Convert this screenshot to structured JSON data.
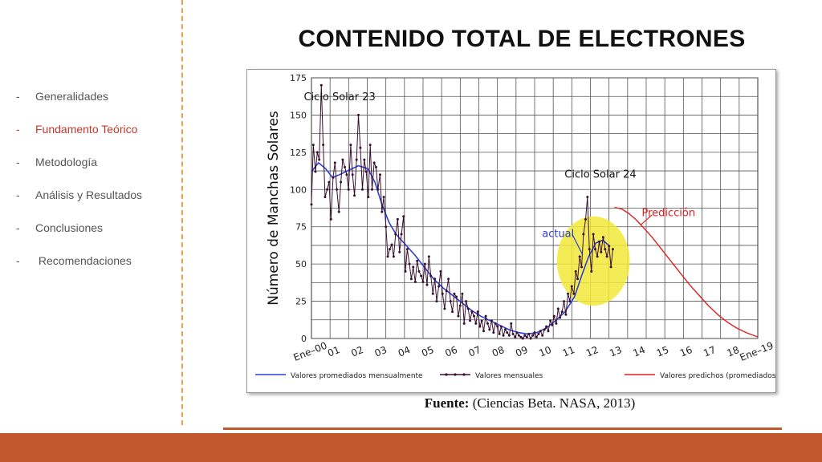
{
  "slide": {
    "title": "CONTENIDO TOTAL DE ELECTRONES",
    "caption_bold": "Fuente:",
    "caption_rest": " (Ciencias Beta. NASA, 2013)"
  },
  "nav": {
    "items": [
      {
        "dash": "-",
        "label": "Generalidades",
        "active": false
      },
      {
        "dash": "-",
        "label": "Fundamento Teórico",
        "active": true
      },
      {
        "dash": "-",
        "label": "Metodología",
        "active": false
      },
      {
        "dash": "-",
        "label": "Análisis y Resultados",
        "active": false
      },
      {
        "dash": "-",
        "label": "Conclusiones",
        "active": false
      },
      {
        "dash": "-",
        "label": " Recomendaciones",
        "active": false
      }
    ]
  },
  "colors": {
    "accent": "#c0572d",
    "divider": "#e8a04a",
    "active_nav": "#c0392b",
    "smoothed": "#2a3fd6",
    "monthly": "#3a1030",
    "predicted": "#e02020",
    "highlight": "#f2e93a"
  },
  "chart_data": {
    "type": "line",
    "ylabel": "Número de Manchas Solares",
    "xlabel": "",
    "ylim": [
      0,
      175
    ],
    "xlim": [
      0,
      19
    ],
    "grid": true,
    "yticks": [
      0,
      25,
      50,
      75,
      100,
      125,
      150,
      175
    ],
    "xticks": [
      {
        "x": 0,
        "label": "Ene–00"
      },
      {
        "x": 1,
        "label": "01"
      },
      {
        "x": 2,
        "label": "02"
      },
      {
        "x": 3,
        "label": "03"
      },
      {
        "x": 4,
        "label": "04"
      },
      {
        "x": 5,
        "label": "05"
      },
      {
        "x": 6,
        "label": "06"
      },
      {
        "x": 7,
        "label": "07"
      },
      {
        "x": 8,
        "label": "08"
      },
      {
        "x": 9,
        "label": "09"
      },
      {
        "x": 10,
        "label": "10"
      },
      {
        "x": 11,
        "label": "11"
      },
      {
        "x": 12,
        "label": "12"
      },
      {
        "x": 13,
        "label": "13"
      },
      {
        "x": 14,
        "label": "14"
      },
      {
        "x": 15,
        "label": "15"
      },
      {
        "x": 16,
        "label": "16"
      },
      {
        "x": 17,
        "label": "17"
      },
      {
        "x": 18,
        "label": "18"
      },
      {
        "x": 19,
        "label": "Ene–19"
      }
    ],
    "legend_position": "bottom",
    "series": [
      {
        "name": "Valores promediados mensualmente",
        "style": "smoothed",
        "points": [
          [
            0,
            112
          ],
          [
            0.3,
            118
          ],
          [
            0.6,
            114
          ],
          [
            0.9,
            108
          ],
          [
            1.2,
            110
          ],
          [
            1.6,
            113
          ],
          [
            2.0,
            116
          ],
          [
            2.4,
            114
          ],
          [
            2.7,
            105
          ],
          [
            3.0,
            90
          ],
          [
            3.3,
            78
          ],
          [
            3.6,
            70
          ],
          [
            4.0,
            63
          ],
          [
            4.4,
            56
          ],
          [
            4.8,
            48
          ],
          [
            5.2,
            40
          ],
          [
            5.6,
            34
          ],
          [
            6.0,
            29
          ],
          [
            6.4,
            24
          ],
          [
            6.8,
            19
          ],
          [
            7.2,
            15
          ],
          [
            7.6,
            12
          ],
          [
            8.0,
            9
          ],
          [
            8.4,
            6
          ],
          [
            8.8,
            4
          ],
          [
            9.2,
            3
          ],
          [
            9.6,
            4
          ],
          [
            10.0,
            7
          ],
          [
            10.4,
            12
          ],
          [
            10.8,
            18
          ],
          [
            11.2,
            28
          ],
          [
            11.5,
            42
          ],
          [
            11.8,
            55
          ],
          [
            12.1,
            64
          ],
          [
            12.4,
            66
          ],
          [
            12.7,
            62
          ]
        ]
      },
      {
        "name": "Valores mensuales",
        "style": "monthly",
        "points": [
          [
            0.0,
            90
          ],
          [
            0.08,
            130
          ],
          [
            0.17,
            112
          ],
          [
            0.25,
            125
          ],
          [
            0.33,
            120
          ],
          [
            0.42,
            170
          ],
          [
            0.5,
            130
          ],
          [
            0.58,
            95
          ],
          [
            0.67,
            100
          ],
          [
            0.75,
            105
          ],
          [
            0.83,
            80
          ],
          [
            0.92,
            108
          ],
          [
            1.0,
            118
          ],
          [
            1.08,
            100
          ],
          [
            1.17,
            85
          ],
          [
            1.25,
            105
          ],
          [
            1.33,
            120
          ],
          [
            1.42,
            115
          ],
          [
            1.5,
            110
          ],
          [
            1.58,
            100
          ],
          [
            1.67,
            130
          ],
          [
            1.75,
            110
          ],
          [
            1.83,
            96
          ],
          [
            1.92,
            120
          ],
          [
            2.0,
            150
          ],
          [
            2.08,
            128
          ],
          [
            2.17,
            100
          ],
          [
            2.25,
            120
          ],
          [
            2.33,
            112
          ],
          [
            2.42,
            95
          ],
          [
            2.5,
            130
          ],
          [
            2.58,
            100
          ],
          [
            2.67,
            118
          ],
          [
            2.75,
            115
          ],
          [
            2.83,
            100
          ],
          [
            2.92,
            110
          ],
          [
            3.0,
            85
          ],
          [
            3.08,
            95
          ],
          [
            3.17,
            75
          ],
          [
            3.25,
            55
          ],
          [
            3.33,
            60
          ],
          [
            3.42,
            63
          ],
          [
            3.5,
            55
          ],
          [
            3.58,
            70
          ],
          [
            3.67,
            80
          ],
          [
            3.75,
            58
          ],
          [
            3.83,
            70
          ],
          [
            3.92,
            82
          ],
          [
            4.0,
            45
          ],
          [
            4.08,
            60
          ],
          [
            4.17,
            50
          ],
          [
            4.25,
            40
          ],
          [
            4.33,
            48
          ],
          [
            4.42,
            38
          ],
          [
            4.5,
            52
          ],
          [
            4.58,
            45
          ],
          [
            4.67,
            42
          ],
          [
            4.75,
            38
          ],
          [
            4.83,
            50
          ],
          [
            4.92,
            36
          ],
          [
            5.0,
            55
          ],
          [
            5.08,
            42
          ],
          [
            5.17,
            30
          ],
          [
            5.25,
            40
          ],
          [
            5.33,
            25
          ],
          [
            5.42,
            35
          ],
          [
            5.5,
            45
          ],
          [
            5.58,
            30
          ],
          [
            5.67,
            20
          ],
          [
            5.75,
            32
          ],
          [
            5.83,
            40
          ],
          [
            5.92,
            25
          ],
          [
            6.0,
            18
          ],
          [
            6.08,
            30
          ],
          [
            6.17,
            28
          ],
          [
            6.25,
            15
          ],
          [
            6.33,
            22
          ],
          [
            6.42,
            30
          ],
          [
            6.5,
            10
          ],
          [
            6.58,
            25
          ],
          [
            6.67,
            20
          ],
          [
            6.75,
            12
          ],
          [
            6.83,
            18
          ],
          [
            6.92,
            15
          ],
          [
            7.0,
            10
          ],
          [
            7.08,
            18
          ],
          [
            7.17,
            8
          ],
          [
            7.25,
            12
          ],
          [
            7.33,
            5
          ],
          [
            7.42,
            15
          ],
          [
            7.5,
            10
          ],
          [
            7.58,
            6
          ],
          [
            7.67,
            12
          ],
          [
            7.75,
            4
          ],
          [
            7.83,
            10
          ],
          [
            7.92,
            8
          ],
          [
            8.0,
            3
          ],
          [
            8.08,
            8
          ],
          [
            8.17,
            2
          ],
          [
            8.25,
            6
          ],
          [
            8.33,
            4
          ],
          [
            8.42,
            2
          ],
          [
            8.5,
            10
          ],
          [
            8.58,
            3
          ],
          [
            8.67,
            1
          ],
          [
            8.75,
            4
          ],
          [
            8.83,
            2
          ],
          [
            8.92,
            1
          ],
          [
            9.0,
            0
          ],
          [
            9.08,
            2
          ],
          [
            9.17,
            1
          ],
          [
            9.25,
            3
          ],
          [
            9.33,
            0
          ],
          [
            9.42,
            2
          ],
          [
            9.5,
            4
          ],
          [
            9.58,
            1
          ],
          [
            9.67,
            3
          ],
          [
            9.75,
            5
          ],
          [
            9.83,
            2
          ],
          [
            9.92,
            6
          ],
          [
            10.0,
            8
          ],
          [
            10.08,
            5
          ],
          [
            10.17,
            12
          ],
          [
            10.25,
            9
          ],
          [
            10.33,
            15
          ],
          [
            10.42,
            10
          ],
          [
            10.5,
            20
          ],
          [
            10.58,
            14
          ],
          [
            10.67,
            18
          ],
          [
            10.75,
            25
          ],
          [
            10.83,
            16
          ],
          [
            10.92,
            30
          ],
          [
            11.0,
            25
          ],
          [
            11.08,
            35
          ],
          [
            11.17,
            30
          ],
          [
            11.25,
            45
          ],
          [
            11.33,
            40
          ],
          [
            11.42,
            55
          ],
          [
            11.5,
            48
          ],
          [
            11.58,
            70
          ],
          [
            11.67,
            80
          ],
          [
            11.75,
            95
          ],
          [
            11.83,
            60
          ],
          [
            11.92,
            45
          ],
          [
            12.0,
            70
          ],
          [
            12.08,
            60
          ],
          [
            12.17,
            55
          ],
          [
            12.25,
            65
          ],
          [
            12.33,
            58
          ],
          [
            12.42,
            68
          ],
          [
            12.5,
            60
          ],
          [
            12.58,
            55
          ],
          [
            12.67,
            62
          ],
          [
            12.75,
            48
          ],
          [
            12.83,
            60
          ]
        ]
      },
      {
        "name": "Valores predichos (promediados)",
        "style": "predicted",
        "points": [
          [
            12.9,
            88
          ],
          [
            13.2,
            87
          ],
          [
            13.5,
            84
          ],
          [
            13.8,
            80
          ],
          [
            14.1,
            75
          ],
          [
            14.5,
            68
          ],
          [
            14.9,
            60
          ],
          [
            15.3,
            52
          ],
          [
            15.7,
            44
          ],
          [
            16.1,
            36
          ],
          [
            16.5,
            29
          ],
          [
            16.9,
            22
          ],
          [
            17.3,
            16
          ],
          [
            17.7,
            11
          ],
          [
            18.1,
            7
          ],
          [
            18.5,
            4
          ],
          [
            19.0,
            1
          ]
        ]
      }
    ],
    "annotations": [
      {
        "text": "Ciclo Solar 23",
        "x": 1.2,
        "y": 160,
        "color": "#111111"
      },
      {
        "text": "Ciclo Solar 24",
        "x": 12.3,
        "y": 108,
        "color": "#111111"
      },
      {
        "text": "actual",
        "x": 10.5,
        "y": 68,
        "color": "#2a3fd6"
      },
      {
        "text": "Predicción",
        "x": 15.2,
        "y": 82,
        "color": "#e02020"
      }
    ],
    "highlight": {
      "cx": 12.0,
      "cy": 52,
      "rx": 1.55,
      "ry": 30
    }
  }
}
